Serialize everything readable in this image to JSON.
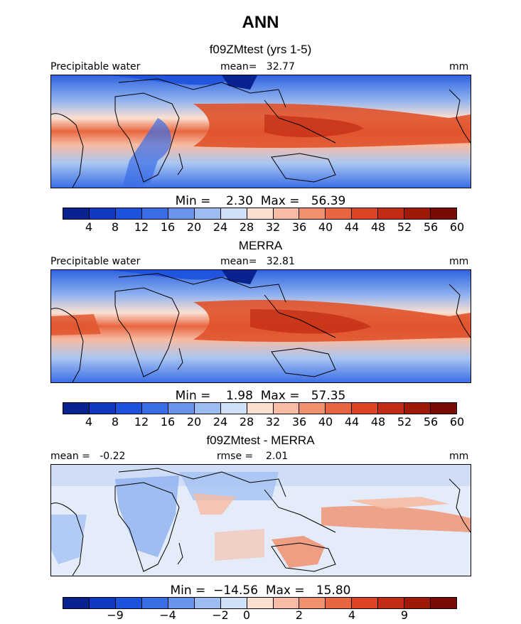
{
  "title": "ANN",
  "panels": [
    {
      "id": "model",
      "title": "f09ZMtest (yrs 1-5)",
      "left_label": "Precipitable water",
      "center_label": "mean=   32.77",
      "right_label": "mm",
      "stats": "Min =    2.30  Max =   56.39",
      "colorbar": {
        "colors": [
          "#08228f",
          "#1038c0",
          "#1d52dc",
          "#3a6ee6",
          "#6a93ec",
          "#9dbdf2",
          "#cfe0f8",
          "#fbe0d2",
          "#f7bca3",
          "#f0906d",
          "#e8663f",
          "#dc4424",
          "#c22c14",
          "#a01808",
          "#7a0a04"
        ],
        "tick_labels": [
          "4",
          "8",
          "12",
          "16",
          "20",
          "24",
          "28",
          "32",
          "36",
          "40",
          "44",
          "48",
          "52",
          "56",
          "60"
        ]
      }
    },
    {
      "id": "obs",
      "title": "MERRA",
      "left_label": "Precipitable water",
      "center_label": "mean=   32.81",
      "right_label": "mm",
      "stats": "Min =    1.98  Max =   57.35",
      "colorbar": {
        "colors": [
          "#08228f",
          "#1038c0",
          "#1d52dc",
          "#3a6ee6",
          "#6a93ec",
          "#9dbdf2",
          "#cfe0f8",
          "#fbe0d2",
          "#f7bca3",
          "#f0906d",
          "#e8663f",
          "#dc4424",
          "#c22c14",
          "#a01808",
          "#7a0a04"
        ],
        "tick_labels": [
          "4",
          "8",
          "12",
          "16",
          "20",
          "24",
          "28",
          "32",
          "36",
          "40",
          "44",
          "48",
          "52",
          "56",
          "60"
        ]
      }
    },
    {
      "id": "diff",
      "title": "f09ZMtest - MERRA",
      "left_label": "mean =   -0.22",
      "center_label": "rmse =    2.01",
      "right_label": "mm",
      "stats": "Min =  −14.56  Max =   15.80",
      "colorbar": {
        "colors": [
          "#08228f",
          "#1038c0",
          "#1d52dc",
          "#3a6ee6",
          "#6a93ec",
          "#9dbdf2",
          "#cfe0f8",
          "#fbe0d2",
          "#f7bca3",
          "#f0906d",
          "#e8663f",
          "#dc4424",
          "#c22c14",
          "#a01808",
          "#7a0a04"
        ],
        "tick_labels": [
          "−9",
          "−4",
          "−2",
          "0",
          "2",
          "4",
          "9"
        ]
      }
    }
  ]
}
